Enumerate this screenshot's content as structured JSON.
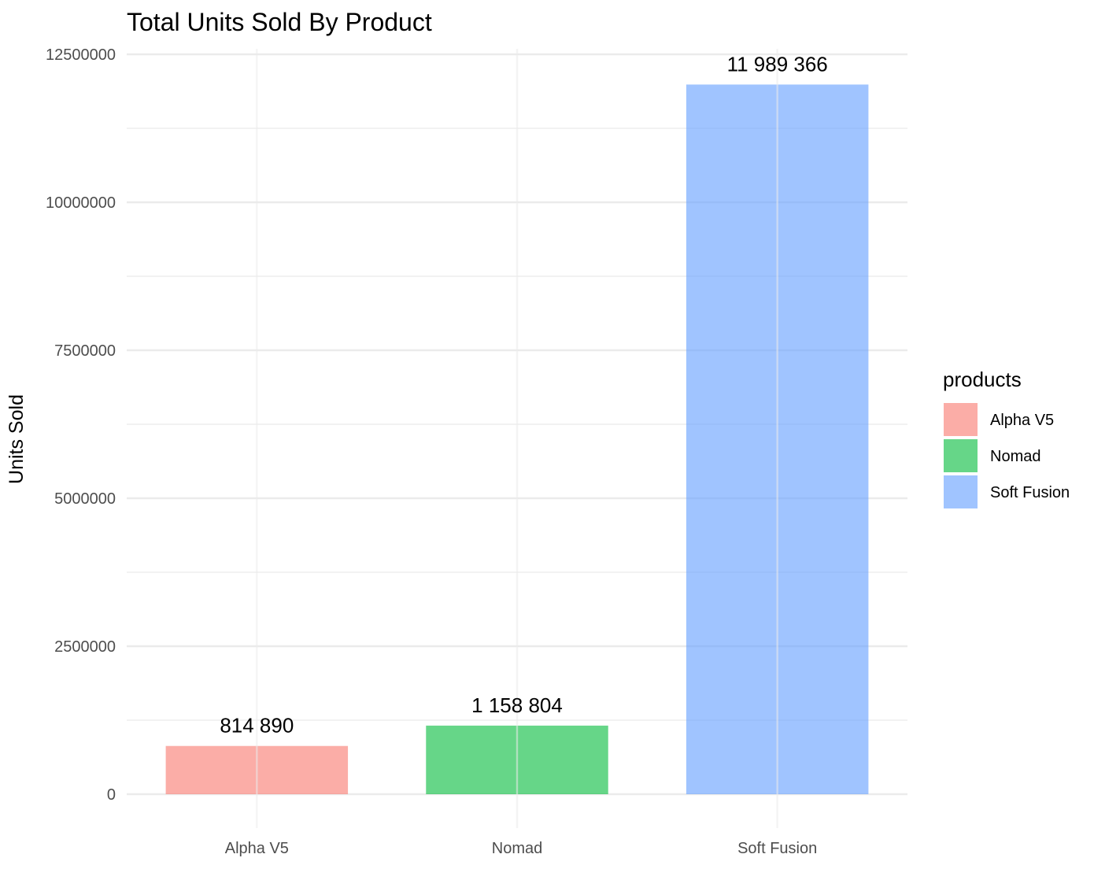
{
  "chart_data": {
    "type": "bar",
    "title": "Total Units Sold By Product",
    "xlabel": "",
    "ylabel": "Units Sold",
    "categories": [
      "Alpha V5",
      "Nomad",
      "Soft Fusion"
    ],
    "values": [
      814890,
      1158804,
      11989366
    ],
    "value_labels": [
      "814 890",
      "1 158 804",
      "11 989 366"
    ],
    "colors": [
      "#F8766D",
      "#00BA38",
      "#619CFF"
    ],
    "bar_opacity": 0.6,
    "ylim": [
      0,
      12500000
    ],
    "yticks": [
      0,
      2500000,
      5000000,
      7500000,
      10000000,
      12500000
    ],
    "ytick_labels": [
      "0",
      "2500000",
      "5000000",
      "7500000",
      "10000000",
      "12500000"
    ],
    "grid": true,
    "legend": {
      "title": "products",
      "position": "right",
      "entries": [
        "Alpha V5",
        "Nomad",
        "Soft Fusion"
      ]
    }
  }
}
